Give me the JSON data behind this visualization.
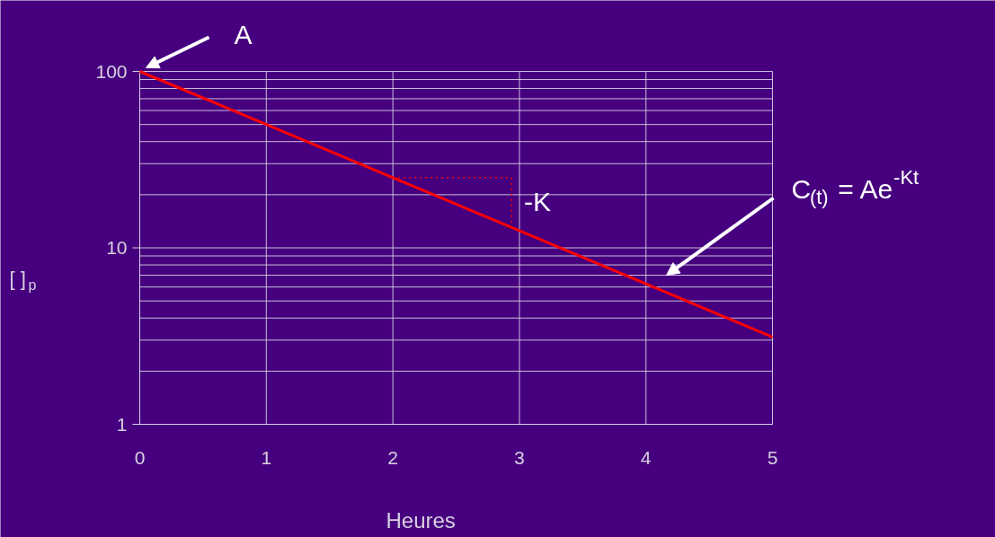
{
  "chart_data": {
    "type": "line",
    "xlabel": "Heures",
    "ylabel": "[ ]$_{p}$",
    "x": [
      0,
      1,
      2,
      3,
      4,
      5
    ],
    "series": [
      {
        "color": "#ff0000",
        "values": [
          100,
          50,
          25,
          12.5,
          6.25,
          3.125
        ]
      }
    ],
    "log": "y",
    "xlim": [
      0,
      5
    ],
    "ylim": [
      1,
      100
    ],
    "xticks": [
      0,
      1,
      2,
      3,
      4,
      5
    ],
    "yticks": [
      1,
      10,
      100
    ],
    "grid": true,
    "marker": "none",
    "line_style": "solid",
    "annotations": [
      {
        "text": "A",
        "x": 0,
        "y": 100
      },
      {
        "text": "-K",
        "x": 2,
        "y": 25
      },
      "C$_{(t)}$ = Ae$^{-Kt}$"
    ]
  }
}
